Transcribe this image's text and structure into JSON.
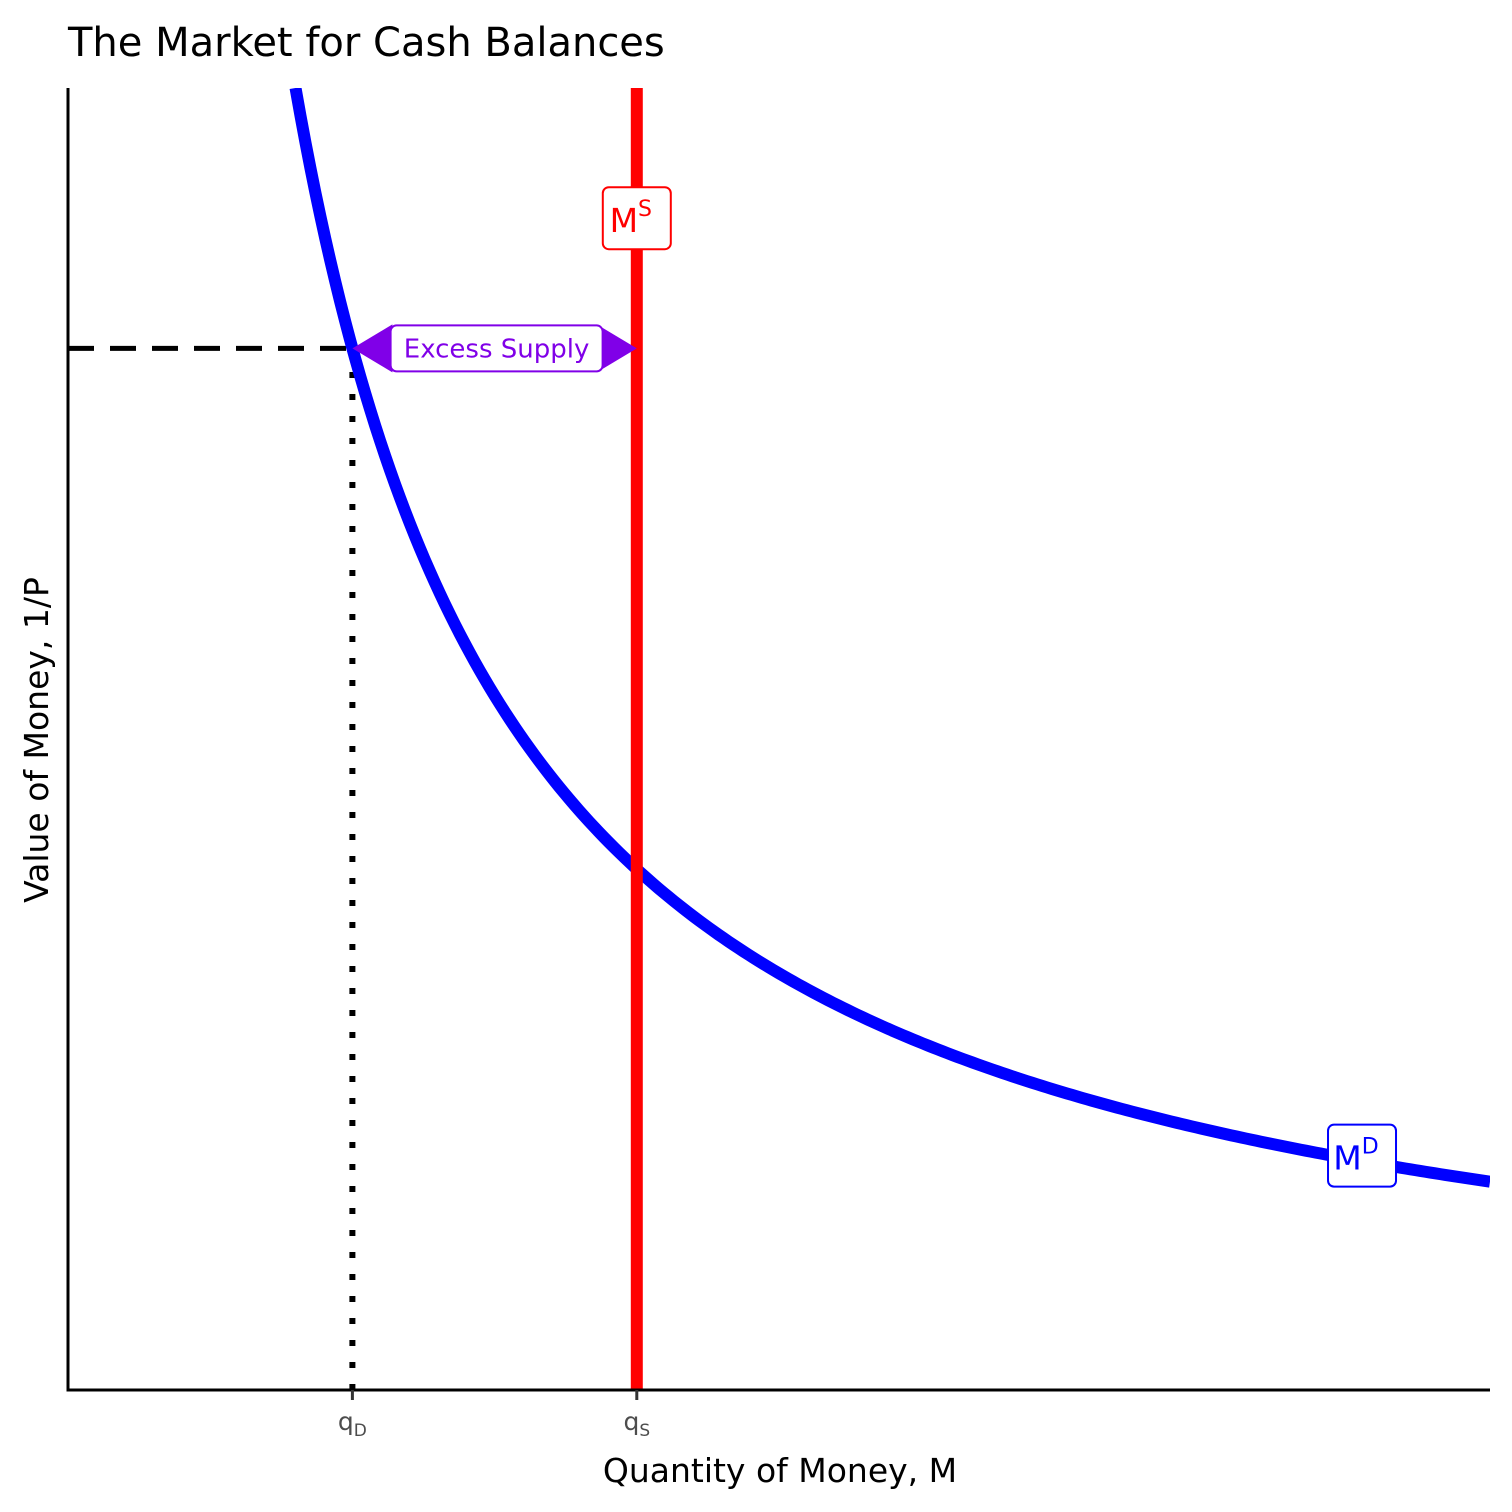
{
  "chart_data": {
    "type": "line",
    "title": "The Market for Cash Balances",
    "xlabel": "Quantity of Money, M",
    "ylabel": "Value of Money, 1/P",
    "xlim": [
      0,
      10
    ],
    "ylim": [
      0,
      10
    ],
    "x_ticks": [
      {
        "x": 2,
        "base": "q",
        "sub": "D"
      },
      {
        "x": 4,
        "base": "q",
        "sub": "S"
      }
    ],
    "series": [
      {
        "name": "M",
        "sup": "D",
        "kind": "demand",
        "formula": "y = k / x",
        "k": 16,
        "x_range": [
          1.6,
          10
        ],
        "color": "#0000ff",
        "label_at": {
          "x": 9.1,
          "y": 1.8
        }
      },
      {
        "name": "M",
        "sup": "S",
        "kind": "supply",
        "x": 4,
        "color": "#ff0000",
        "label_at": {
          "x": 4,
          "y": 9.0
        }
      }
    ],
    "reference_lines": [
      {
        "kind": "horizontal",
        "style": "dashed",
        "y": 8,
        "x_from": 0,
        "x_to": 2,
        "color": "#000000"
      },
      {
        "kind": "vertical",
        "style": "dotted",
        "x": 2,
        "y_from": 0,
        "y_to": 8,
        "color": "#000000"
      }
    ],
    "annotations": [
      {
        "text": "Excess Supply",
        "kind": "double-arrow",
        "x_from": 2,
        "x_to": 4,
        "y": 8,
        "color": "#8000e8"
      }
    ],
    "grid": false,
    "legend": "none"
  }
}
